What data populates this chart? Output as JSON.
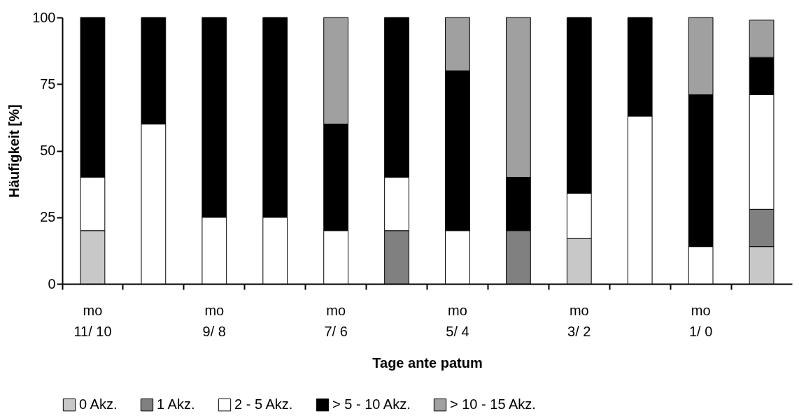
{
  "chart_data": {
    "type": "bar",
    "stacked": true,
    "xlabel": "Tage ante patum",
    "ylabel": "Häufigkeit [%]",
    "categories": [
      "mo\n11/ 10",
      null,
      "mo\n9/ 8",
      null,
      "mo\n7/ 6",
      null,
      "mo\n5/ 4",
      null,
      "mo\n3/ 2",
      null,
      "mo\n1/ 0",
      null
    ],
    "series": [
      {
        "name": "0 Akz.",
        "color": "#c8c8c8",
        "values": [
          20,
          0,
          0,
          0,
          0,
          0,
          0,
          0,
          17,
          0,
          0,
          14
        ]
      },
      {
        "name": "1 Akz.",
        "color": "#808080",
        "values": [
          0,
          0,
          0,
          0,
          0,
          20,
          0,
          20,
          0,
          0,
          0,
          14
        ]
      },
      {
        "name": "2 - 5 Akz.",
        "color": "#ffffff",
        "values": [
          20,
          60,
          25,
          25,
          20,
          20,
          20,
          0,
          17,
          63,
          14,
          43
        ]
      },
      {
        "name": "> 5 - 10 Akz.",
        "color": "#000000",
        "values": [
          60,
          40,
          75,
          75,
          40,
          60,
          60,
          20,
          66,
          37,
          57,
          14
        ]
      },
      {
        "name": "> 10 - 15 Akz.",
        "color": "#a0a0a0",
        "values": [
          0,
          0,
          0,
          0,
          40,
          0,
          20,
          60,
          0,
          0,
          29,
          14
        ]
      }
    ],
    "ylim": [
      0,
      100
    ],
    "yticks": [
      0,
      25,
      50,
      75,
      100
    ],
    "grid": false,
    "legend": "bottom"
  }
}
